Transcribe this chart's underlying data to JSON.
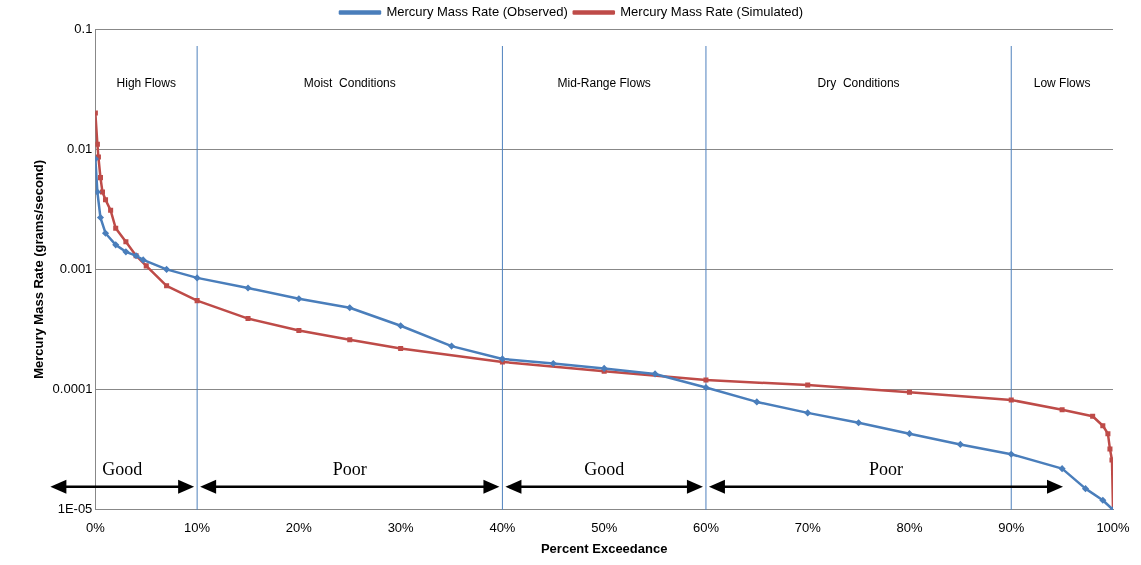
{
  "chart_data": {
    "type": "line",
    "xlabel": "Percent Exceedance",
    "ylabel": "Mercury Mass Rate (grams/second)",
    "log": "y",
    "grid": "y",
    "legend": "top",
    "line_style": "solid",
    "xlim": [
      0,
      100
    ],
    "xticks": [
      {
        "value": 0,
        "label": "0%"
      },
      {
        "value": 10,
        "label": "10%"
      },
      {
        "value": 20,
        "label": "20%"
      },
      {
        "value": 30,
        "label": "30%"
      },
      {
        "value": 40,
        "label": "40%"
      },
      {
        "value": 50,
        "label": "50%"
      },
      {
        "value": 60,
        "label": "60%"
      },
      {
        "value": 70,
        "label": "70%"
      },
      {
        "value": 80,
        "label": "80%"
      },
      {
        "value": 90,
        "label": "90%"
      },
      {
        "value": 100,
        "label": "100%"
      }
    ],
    "ylim": [
      1e-05,
      0.1
    ],
    "yticks": [
      {
        "value": 1e-05,
        "label": "1E-05"
      },
      0.0001,
      0.001,
      0.01,
      0.1
    ],
    "series": [
      {
        "name": "Mercury Mass Rate (Observed)",
        "color": "#4a7ebb",
        "marker": "diamond",
        "x": [
          0,
          0.2,
          0.5,
          1,
          2,
          3,
          4,
          4.7,
          7,
          10,
          15,
          20,
          25,
          30,
          35,
          40,
          45,
          50,
          55,
          60,
          65,
          70,
          75,
          80,
          85,
          90,
          95,
          97.3,
          99,
          100
        ],
        "values": [
          0.0083,
          0.0044,
          0.0027,
          0.002,
          0.0016,
          0.0014,
          0.0013,
          0.0012,
          0.001,
          0.00085,
          0.0007,
          0.00057,
          0.00048,
          0.00034,
          0.00023,
          0.00018,
          0.000165,
          0.00015,
          0.000135,
          0.000104,
          7.9e-05,
          6.4e-05,
          5.3e-05,
          4.3e-05,
          3.5e-05,
          2.9e-05,
          2.2e-05,
          1.5e-05,
          1.2e-05,
          1e-05
        ]
      },
      {
        "name": "Mercury Mass Rate (Simulated)",
        "color": "#be4b48",
        "marker": "square",
        "x": [
          0,
          0.2,
          0.3,
          0.5,
          0.7,
          1,
          1.5,
          2,
          3,
          4,
          5,
          7,
          10,
          15,
          20,
          25,
          30,
          40,
          50,
          60,
          70,
          80,
          90,
          95,
          98,
          99,
          99.5,
          99.7,
          99.9,
          100
        ],
        "values": [
          0.02,
          0.011,
          0.0086,
          0.0058,
          0.0044,
          0.0038,
          0.0031,
          0.0022,
          0.0017,
          0.0013,
          0.00107,
          0.00073,
          0.00055,
          0.00039,
          0.00031,
          0.00026,
          0.00022,
          0.00017,
          0.000142,
          0.00012,
          0.000109,
          9.5e-05,
          8.2e-05,
          6.8e-05,
          6e-05,
          5e-05,
          4.3e-05,
          3.2e-05,
          2.6e-05,
          1e-05
        ]
      }
    ],
    "ref_lines": [
      {
        "axis": "x",
        "value": 10,
        "color": "#4f81bd"
      },
      {
        "axis": "x",
        "value": 40,
        "color": "#4f81bd"
      },
      {
        "axis": "x",
        "value": 60,
        "color": "#4f81bd"
      },
      {
        "axis": "x",
        "value": 90,
        "color": "#4f81bd"
      }
    ],
    "annotations": [
      "High Flows",
      "Moist  Conditions",
      "Mid-Range Flows",
      "Dry  Conditions",
      "Low Flows",
      "Good",
      "Poor",
      "Good",
      "Poor"
    ]
  }
}
